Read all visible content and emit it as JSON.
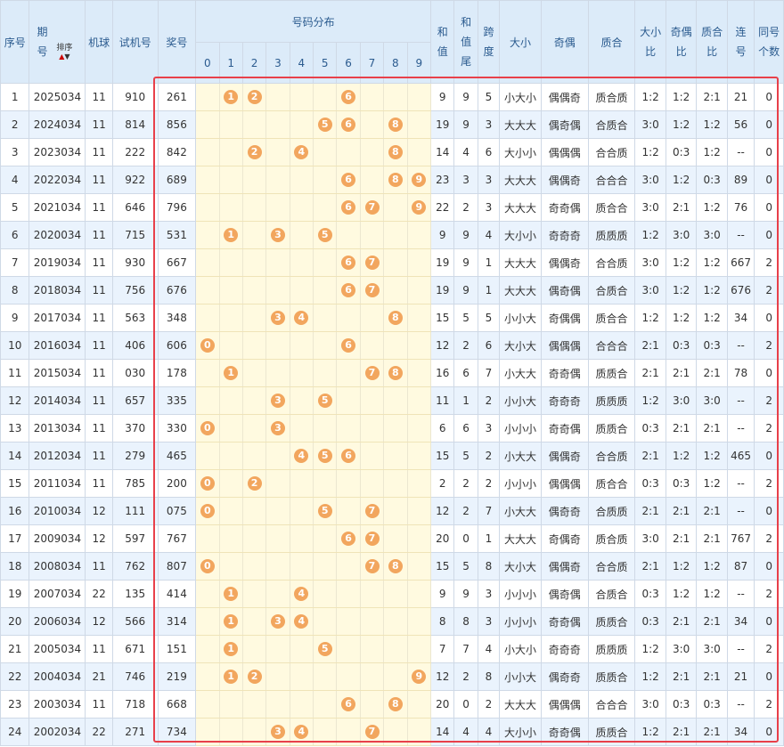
{
  "headers": {
    "seq": "序号",
    "period_line1": "期",
    "period_line2": "号",
    "sort_label": "排序",
    "machine": "机球",
    "test_number": "试机号",
    "draw_number": "奖号",
    "distribution": "号码分布",
    "sum_line1": "和",
    "sum_line2": "值",
    "sum_tail_line1": "和",
    "sum_tail_line2": "值",
    "sum_tail_line3": "尾",
    "span_line1": "跨",
    "span_line2": "度",
    "big_small": "大小",
    "odd_even": "奇偶",
    "prime_composite": "质合",
    "bs_ratio_line1": "大小",
    "bs_ratio_line2": "比",
    "oe_ratio_line1": "奇偶",
    "oe_ratio_line2": "比",
    "pc_ratio_line1": "质合",
    "pc_ratio_line2": "比",
    "consecutive_line1": "连",
    "consecutive_line2": "号",
    "same_count_line1": "同号",
    "same_count_line2": "个数",
    "digits": [
      "0",
      "1",
      "2",
      "3",
      "4",
      "5",
      "6",
      "7",
      "8",
      "9"
    ]
  },
  "rows": [
    {
      "seq": "1",
      "period": "2025034",
      "machine": "11",
      "test": "910",
      "draw": "261",
      "balls": [
        "1",
        "2",
        "6"
      ],
      "sum": "9",
      "tail": "9",
      "span": "5",
      "bs": "小大小",
      "oe": "偶偶奇",
      "pc": "质合质",
      "bsr": "1:2",
      "oer": "1:2",
      "pcr": "2:1",
      "cons": "21",
      "same": "0"
    },
    {
      "seq": "2",
      "period": "2024034",
      "machine": "11",
      "test": "814",
      "draw": "856",
      "balls": [
        "5",
        "6",
        "8"
      ],
      "sum": "19",
      "tail": "9",
      "span": "3",
      "bs": "大大大",
      "oe": "偶奇偶",
      "pc": "合质合",
      "bsr": "3:0",
      "oer": "1:2",
      "pcr": "1:2",
      "cons": "56",
      "same": "0"
    },
    {
      "seq": "3",
      "period": "2023034",
      "machine": "11",
      "test": "222",
      "draw": "842",
      "balls": [
        "2",
        "4",
        "8"
      ],
      "sum": "14",
      "tail": "4",
      "span": "6",
      "bs": "大小小",
      "oe": "偶偶偶",
      "pc": "合合质",
      "bsr": "1:2",
      "oer": "0:3",
      "pcr": "1:2",
      "cons": "--",
      "same": "0"
    },
    {
      "seq": "4",
      "period": "2022034",
      "machine": "11",
      "test": "922",
      "draw": "689",
      "balls": [
        "6",
        "8",
        "9"
      ],
      "sum": "23",
      "tail": "3",
      "span": "3",
      "bs": "大大大",
      "oe": "偶偶奇",
      "pc": "合合合",
      "bsr": "3:0",
      "oer": "1:2",
      "pcr": "0:3",
      "cons": "89",
      "same": "0"
    },
    {
      "seq": "5",
      "period": "2021034",
      "machine": "11",
      "test": "646",
      "draw": "796",
      "balls": [
        "6",
        "7",
        "9"
      ],
      "sum": "22",
      "tail": "2",
      "span": "3",
      "bs": "大大大",
      "oe": "奇奇偶",
      "pc": "质合合",
      "bsr": "3:0",
      "oer": "2:1",
      "pcr": "1:2",
      "cons": "76",
      "same": "0"
    },
    {
      "seq": "6",
      "period": "2020034",
      "machine": "11",
      "test": "715",
      "draw": "531",
      "balls": [
        "1",
        "3",
        "5"
      ],
      "sum": "9",
      "tail": "9",
      "span": "4",
      "bs": "大小小",
      "oe": "奇奇奇",
      "pc": "质质质",
      "bsr": "1:2",
      "oer": "3:0",
      "pcr": "3:0",
      "cons": "--",
      "same": "0"
    },
    {
      "seq": "7",
      "period": "2019034",
      "machine": "11",
      "test": "930",
      "draw": "667",
      "balls": [
        "6",
        "7"
      ],
      "sum": "19",
      "tail": "9",
      "span": "1",
      "bs": "大大大",
      "oe": "偶偶奇",
      "pc": "合合质",
      "bsr": "3:0",
      "oer": "1:2",
      "pcr": "1:2",
      "cons": "667",
      "same": "2"
    },
    {
      "seq": "8",
      "period": "2018034",
      "machine": "11",
      "test": "756",
      "draw": "676",
      "balls": [
        "6",
        "7"
      ],
      "sum": "19",
      "tail": "9",
      "span": "1",
      "bs": "大大大",
      "oe": "偶奇偶",
      "pc": "合质合",
      "bsr": "3:0",
      "oer": "1:2",
      "pcr": "1:2",
      "cons": "676",
      "same": "2"
    },
    {
      "seq": "9",
      "period": "2017034",
      "machine": "11",
      "test": "563",
      "draw": "348",
      "balls": [
        "3",
        "4",
        "8"
      ],
      "sum": "15",
      "tail": "5",
      "span": "5",
      "bs": "小小大",
      "oe": "奇偶偶",
      "pc": "质合合",
      "bsr": "1:2",
      "oer": "1:2",
      "pcr": "1:2",
      "cons": "34",
      "same": "0"
    },
    {
      "seq": "10",
      "period": "2016034",
      "machine": "11",
      "test": "406",
      "draw": "606",
      "balls": [
        "0",
        "6"
      ],
      "sum": "12",
      "tail": "2",
      "span": "6",
      "bs": "大小大",
      "oe": "偶偶偶",
      "pc": "合合合",
      "bsr": "2:1",
      "oer": "0:3",
      "pcr": "0:3",
      "cons": "--",
      "same": "2"
    },
    {
      "seq": "11",
      "period": "2015034",
      "machine": "11",
      "test": "030",
      "draw": "178",
      "balls": [
        "1",
        "7",
        "8"
      ],
      "sum": "16",
      "tail": "6",
      "span": "7",
      "bs": "小大大",
      "oe": "奇奇偶",
      "pc": "质质合",
      "bsr": "2:1",
      "oer": "2:1",
      "pcr": "2:1",
      "cons": "78",
      "same": "0"
    },
    {
      "seq": "12",
      "period": "2014034",
      "machine": "11",
      "test": "657",
      "draw": "335",
      "balls": [
        "3",
        "5"
      ],
      "sum": "11",
      "tail": "1",
      "span": "2",
      "bs": "小小大",
      "oe": "奇奇奇",
      "pc": "质质质",
      "bsr": "1:2",
      "oer": "3:0",
      "pcr": "3:0",
      "cons": "--",
      "same": "2"
    },
    {
      "seq": "13",
      "period": "2013034",
      "machine": "11",
      "test": "370",
      "draw": "330",
      "balls": [
        "0",
        "3"
      ],
      "sum": "6",
      "tail": "6",
      "span": "3",
      "bs": "小小小",
      "oe": "奇奇偶",
      "pc": "质质合",
      "bsr": "0:3",
      "oer": "2:1",
      "pcr": "2:1",
      "cons": "--",
      "same": "2"
    },
    {
      "seq": "14",
      "period": "2012034",
      "machine": "11",
      "test": "279",
      "draw": "465",
      "balls": [
        "4",
        "5",
        "6"
      ],
      "sum": "15",
      "tail": "5",
      "span": "2",
      "bs": "小大大",
      "oe": "偶偶奇",
      "pc": "合合质",
      "bsr": "2:1",
      "oer": "1:2",
      "pcr": "1:2",
      "cons": "465",
      "same": "0"
    },
    {
      "seq": "15",
      "period": "2011034",
      "machine": "11",
      "test": "785",
      "draw": "200",
      "balls": [
        "0",
        "2"
      ],
      "sum": "2",
      "tail": "2",
      "span": "2",
      "bs": "小小小",
      "oe": "偶偶偶",
      "pc": "质合合",
      "bsr": "0:3",
      "oer": "0:3",
      "pcr": "1:2",
      "cons": "--",
      "same": "2"
    },
    {
      "seq": "16",
      "period": "2010034",
      "machine": "12",
      "test": "111",
      "draw": "075",
      "balls": [
        "0",
        "5",
        "7"
      ],
      "sum": "12",
      "tail": "2",
      "span": "7",
      "bs": "小大大",
      "oe": "偶奇奇",
      "pc": "合质质",
      "bsr": "2:1",
      "oer": "2:1",
      "pcr": "2:1",
      "cons": "--",
      "same": "0"
    },
    {
      "seq": "17",
      "period": "2009034",
      "machine": "12",
      "test": "597",
      "draw": "767",
      "balls": [
        "6",
        "7"
      ],
      "sum": "20",
      "tail": "0",
      "span": "1",
      "bs": "大大大",
      "oe": "奇偶奇",
      "pc": "质合质",
      "bsr": "3:0",
      "oer": "2:1",
      "pcr": "2:1",
      "cons": "767",
      "same": "2"
    },
    {
      "seq": "18",
      "period": "2008034",
      "machine": "11",
      "test": "762",
      "draw": "807",
      "balls": [
        "0",
        "7",
        "8"
      ],
      "sum": "15",
      "tail": "5",
      "span": "8",
      "bs": "大小大",
      "oe": "偶偶奇",
      "pc": "合合质",
      "bsr": "2:1",
      "oer": "1:2",
      "pcr": "1:2",
      "cons": "87",
      "same": "0"
    },
    {
      "seq": "19",
      "period": "2007034",
      "machine": "22",
      "test": "135",
      "draw": "414",
      "balls": [
        "1",
        "4"
      ],
      "sum": "9",
      "tail": "9",
      "span": "3",
      "bs": "小小小",
      "oe": "偶奇偶",
      "pc": "合质合",
      "bsr": "0:3",
      "oer": "1:2",
      "pcr": "1:2",
      "cons": "--",
      "same": "2"
    },
    {
      "seq": "20",
      "period": "2006034",
      "machine": "12",
      "test": "566",
      "draw": "314",
      "balls": [
        "1",
        "3",
        "4"
      ],
      "sum": "8",
      "tail": "8",
      "span": "3",
      "bs": "小小小",
      "oe": "奇奇偶",
      "pc": "质质合",
      "bsr": "0:3",
      "oer": "2:1",
      "pcr": "2:1",
      "cons": "34",
      "same": "0"
    },
    {
      "seq": "21",
      "period": "2005034",
      "machine": "11",
      "test": "671",
      "draw": "151",
      "balls": [
        "1",
        "5"
      ],
      "sum": "7",
      "tail": "7",
      "span": "4",
      "bs": "小大小",
      "oe": "奇奇奇",
      "pc": "质质质",
      "bsr": "1:2",
      "oer": "3:0",
      "pcr": "3:0",
      "cons": "--",
      "same": "2"
    },
    {
      "seq": "22",
      "period": "2004034",
      "machine": "21",
      "test": "746",
      "draw": "219",
      "balls": [
        "1",
        "2",
        "9"
      ],
      "sum": "12",
      "tail": "2",
      "span": "8",
      "bs": "小小大",
      "oe": "偶奇奇",
      "pc": "质质合",
      "bsr": "1:2",
      "oer": "2:1",
      "pcr": "2:1",
      "cons": "21",
      "same": "0"
    },
    {
      "seq": "23",
      "period": "2003034",
      "machine": "11",
      "test": "718",
      "draw": "668",
      "balls": [
        "6",
        "8"
      ],
      "sum": "20",
      "tail": "0",
      "span": "2",
      "bs": "大大大",
      "oe": "偶偶偶",
      "pc": "合合合",
      "bsr": "3:0",
      "oer": "0:3",
      "pcr": "0:3",
      "cons": "--",
      "same": "2"
    },
    {
      "seq": "24",
      "period": "2002034",
      "machine": "22",
      "test": "271",
      "draw": "734",
      "balls": [
        "3",
        "4",
        "7"
      ],
      "sum": "14",
      "tail": "4",
      "span": "4",
      "bs": "大小小",
      "oe": "奇奇偶",
      "pc": "质质合",
      "bsr": "1:2",
      "oer": "2:1",
      "pcr": "2:1",
      "cons": "34",
      "same": "0"
    }
  ],
  "colors": {
    "ball": "#f2a65e",
    "highlight_border": "#e8404a",
    "header_bg": "#dcebf9",
    "digit_bg": "#fffae0"
  }
}
